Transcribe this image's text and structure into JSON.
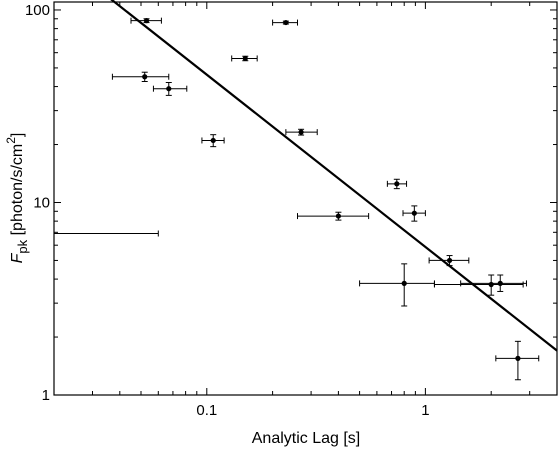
{
  "chart_data": {
    "type": "scatter",
    "title": "",
    "xlabel": "Analytic Lag [s]",
    "ylabel": {
      "main": "F",
      "sub": "pk",
      "rest": " [photon/s/cm",
      "sup": "2",
      "close": "]"
    },
    "xscale": "log",
    "yscale": "log",
    "xlim": [
      0.02,
      4.0
    ],
    "ylim": [
      1,
      110
    ],
    "grid": false,
    "legend": "none",
    "x_ticks": [
      {
        "value": 0.1,
        "label": "0.1"
      },
      {
        "value": 1,
        "label": "1"
      }
    ],
    "y_ticks": [
      {
        "value": 1,
        "label": "1"
      },
      {
        "value": 10,
        "label": "10"
      },
      {
        "value": 100,
        "label": "100"
      }
    ],
    "series": [
      {
        "points": [
          {
            "x": 0.053,
            "xerr": [
              0.045,
              0.062
            ],
            "y": 88,
            "yerr": [
              86,
              90
            ]
          },
          {
            "x": 0.23,
            "xerr": [
              0.2,
              0.26
            ],
            "y": 86,
            "yerr": [
              84.5,
              87.5
            ]
          },
          {
            "x": 0.15,
            "xerr": [
              0.13,
              0.17
            ],
            "y": 56,
            "yerr": [
              54.5,
              57.5
            ]
          },
          {
            "x": 0.052,
            "xerr": [
              0.037,
              0.067
            ],
            "y": 45,
            "yerr": [
              42.5,
              47.5
            ]
          },
          {
            "x": 0.067,
            "xerr": [
              0.057,
              0.081
            ],
            "y": 39,
            "yerr": [
              36,
              42
            ]
          },
          {
            "x": 0.27,
            "xerr": [
              0.23,
              0.32
            ],
            "y": 23.2,
            "yerr": [
              22.4,
              24
            ]
          },
          {
            "x": 0.107,
            "xerr": [
              0.095,
              0.12
            ],
            "y": 21,
            "yerr": [
              19.5,
              22.5
            ]
          },
          {
            "x": 0.74,
            "xerr": [
              0.67,
              0.82
            ],
            "y": 12.5,
            "yerr": [
              11.8,
              13.2
            ]
          },
          {
            "x": 0.89,
            "xerr": [
              0.79,
              1.0
            ],
            "y": 8.8,
            "yerr": [
              8.0,
              9.6
            ]
          },
          {
            "x": 0.4,
            "xerr": [
              0.26,
              0.55
            ],
            "y": 8.5,
            "yerr": [
              8.1,
              8.9
            ]
          },
          {
            "x": 1.29,
            "xerr": [
              1.04,
              1.58
            ],
            "y": 5.0,
            "yerr": [
              4.7,
              5.3
            ]
          },
          {
            "x": 0.8,
            "xerr": [
              0.5,
              1.1
            ],
            "y": 3.8,
            "yerr": [
              2.9,
              4.8
            ]
          },
          {
            "x": 2.2,
            "xerr": [
              1.45,
              2.9
            ],
            "y": 3.8,
            "yerr": [
              3.45,
              4.2
            ]
          },
          {
            "x": 2.0,
            "xerr": [
              1.1,
              2.8
            ],
            "y": 3.75,
            "yerr": [
              3.3,
              4.2
            ]
          },
          {
            "x": 2.65,
            "xerr": [
              2.1,
              3.3
            ],
            "y": 1.55,
            "yerr": [
              1.2,
              1.9
            ]
          }
        ]
      }
    ],
    "upper_limits": [
      {
        "x_from": 0.02,
        "x_to": 0.06,
        "y": 6.9
      }
    ],
    "fit_line": {
      "type": "power-law",
      "x": [
        0.036,
        4.0
      ],
      "y": [
        115,
        1.7
      ]
    },
    "colors": {
      "points": "#000000",
      "line": "#000000",
      "axes": "#000000"
    }
  }
}
